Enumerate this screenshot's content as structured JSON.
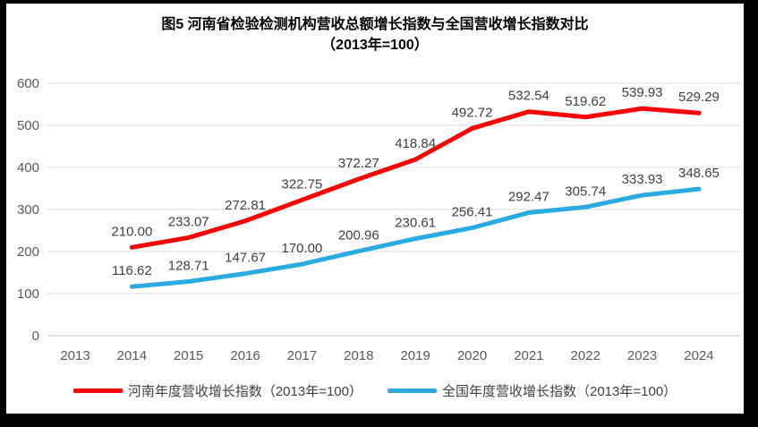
{
  "figure": {
    "title_line1": "图5  河南省检验检测机构营收总额增长指数与全国营收增长指数对比",
    "title_line2": "（2013年=100）"
  },
  "chart_data": {
    "type": "line",
    "categories": [
      "2013",
      "2014",
      "2015",
      "2016",
      "2017",
      "2018",
      "2019",
      "2020",
      "2021",
      "2022",
      "2023",
      "2024"
    ],
    "series": [
      {
        "name": "河南年度营收增长指数（2013年=100）",
        "color": "#FF0000",
        "values": [
          null,
          210.0,
          233.07,
          272.81,
          322.75,
          372.27,
          418.84,
          492.72,
          532.54,
          519.62,
          539.93,
          529.29
        ]
      },
      {
        "name": "全国年度营收增长指数（2013年=100）",
        "color": "#29ABE2",
        "values": [
          null,
          116.62,
          128.71,
          147.67,
          170.0,
          200.96,
          230.61,
          256.41,
          292.47,
          305.74,
          333.93,
          348.65
        ]
      }
    ],
    "yticks": [
      0,
      100,
      200,
      300,
      400,
      500,
      600
    ],
    "ylim": [
      0,
      600
    ],
    "grid": true,
    "data_labels": true,
    "label_decimals": 2,
    "legend_position": "bottom",
    "label_color": "#404040",
    "axis_color": "#595959",
    "grid_color": "#D9D9D9",
    "zero_line_color": "#BFBFBF"
  }
}
